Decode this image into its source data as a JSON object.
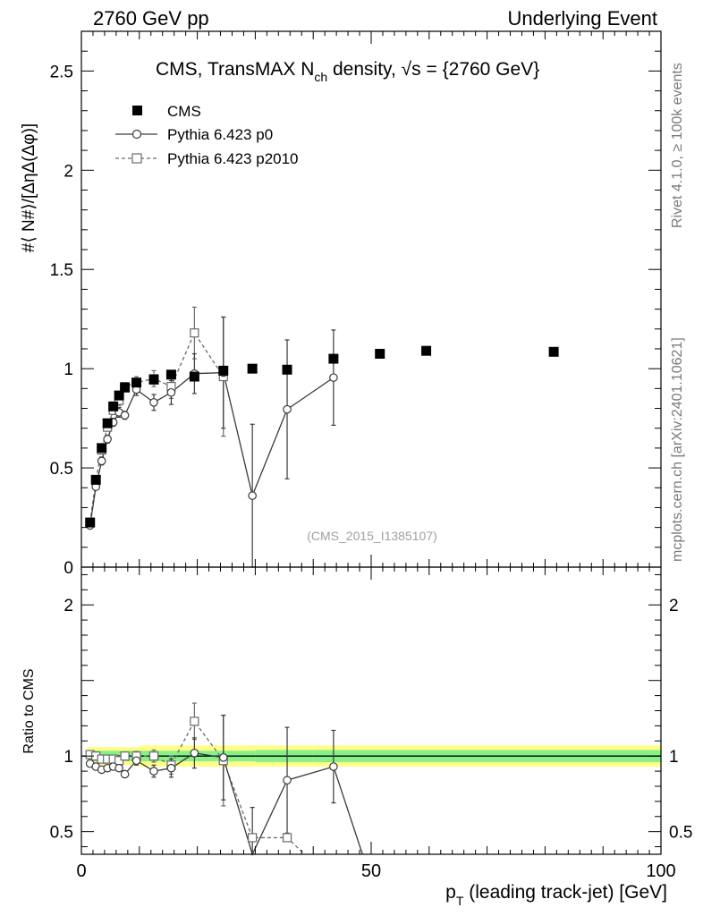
{
  "header": {
    "left": "2760 GeV pp",
    "right": "Underlying Event"
  },
  "side": {
    "rivet": "Rivet 4.1.0, ≥ 100k events",
    "mcplots": "mcplots.cern.ch [arXiv:2401.10621]"
  },
  "chart_data": {
    "type": "scatter",
    "title": {
      "prefix": "CMS, TransMAX N",
      "sub": "ch",
      "suffix": " density, ",
      "sqrt": "√s",
      "energy": " = {2760 GeV}"
    },
    "watermark": "(CMS_2015_I1385107)",
    "ylabel": "#⟨ N#⟩/[ΔηΔ(Δφ)]",
    "ratio_ylabel": "Ratio to CMS",
    "xlabel": {
      "main": "p",
      "sub": "T",
      "rest": " (leading track-jet) [GeV]"
    },
    "xlim": [
      0,
      100
    ],
    "ylim": [
      0,
      2.7
    ],
    "ratio_ylim": [
      0.35,
      2.25
    ],
    "x_ticks": [
      0,
      50,
      100
    ],
    "y_ticks": [
      {
        "v": 0.5,
        "t": "0.5"
      },
      {
        "v": 1,
        "t": "1"
      },
      {
        "v": 1.5,
        "t": "1.5"
      },
      {
        "v": 2,
        "t": "2"
      },
      {
        "v": 2.5,
        "t": "2.5"
      },
      {
        "v": 0,
        "t": "0"
      }
    ],
    "ratio_ticks": [
      {
        "v": 0.5,
        "t": "0.5"
      },
      {
        "v": 1,
        "t": "1"
      },
      {
        "v": 2,
        "t": "2"
      }
    ],
    "legend": {
      "position": "top-left",
      "cms": "CMS",
      "p0": "Pythia 6.423 p0",
      "p2010": "Pythia 6.423 p2010"
    },
    "series": [
      {
        "name": "CMS",
        "style": "filled-square",
        "x": [
          1.5,
          2.5,
          3.5,
          4.5,
          5.5,
          6.5,
          7.5,
          9.5,
          12.5,
          15.5,
          19.5,
          24.5,
          29.5,
          35.5,
          43.5,
          51.5,
          59.5,
          81.5
        ],
        "y": [
          0.225,
          0.44,
          0.6,
          0.725,
          0.81,
          0.865,
          0.905,
          0.93,
          0.945,
          0.97,
          0.96,
          0.99,
          1.0,
          0.995,
          1.05,
          1.075,
          1.09,
          1.085
        ],
        "err": [
          0,
          0,
          0,
          0,
          0,
          0,
          0,
          0,
          0,
          0,
          0,
          0,
          0,
          0,
          0,
          0,
          0,
          0
        ]
      },
      {
        "name": "Pythia 6.423 p0",
        "style": "open-circle-solid",
        "x": [
          1.5,
          2.5,
          3.5,
          4.5,
          5.5,
          6.5,
          7.5,
          9.5,
          12.5,
          15.5,
          19.5,
          24.5,
          29.5,
          35.5,
          43.5
        ],
        "y": [
          0.21,
          0.405,
          0.535,
          0.645,
          0.73,
          0.78,
          0.765,
          0.895,
          0.83,
          0.88,
          0.975,
          0.98,
          0.36,
          0.795,
          0.955
        ],
        "err": [
          0.01,
          0.01,
          0.02,
          0.02,
          0.02,
          0.025,
          0.02,
          0.03,
          0.04,
          0.06,
          0.1,
          0.28,
          0.36,
          0.35,
          0.24
        ]
      },
      {
        "name": "Pythia 6.423 p2010",
        "style": "open-square-dashed",
        "x": [
          1.5,
          2.5,
          3.5,
          4.5,
          5.5,
          6.5,
          7.5,
          9.5,
          12.5,
          15.5,
          19.5,
          24.5
        ],
        "y": [
          0.225,
          0.44,
          0.59,
          0.705,
          0.79,
          0.84,
          0.91,
          0.93,
          0.95,
          0.91,
          1.18,
          0.96
        ],
        "err": [
          0.01,
          0.01,
          0.02,
          0.02,
          0.02,
          0.025,
          0.02,
          0.03,
          0.04,
          0.06,
          0.13,
          0.3
        ]
      }
    ],
    "ratio_series": [
      {
        "name": "Pythia 6.423 p0",
        "x": [
          1.5,
          2.5,
          3.5,
          4.5,
          5.5,
          6.5,
          7.5,
          9.5,
          12.5,
          15.5,
          19.5,
          24.5,
          29.5,
          35.5,
          43.5,
          48.5
        ],
        "y": [
          0.95,
          0.93,
          0.91,
          0.92,
          0.93,
          0.92,
          0.88,
          0.97,
          0.9,
          0.92,
          1.02,
          0.99,
          0.3,
          0.84,
          0.93,
          0.3
        ],
        "err": [
          0.01,
          0.01,
          0.02,
          0.02,
          0.02,
          0.02,
          0.02,
          0.03,
          0.04,
          0.06,
          0.1,
          0.28,
          0.36,
          0.35,
          0.24,
          0
        ]
      },
      {
        "name": "Pythia 6.423 p2010",
        "x": [
          1.5,
          2.5,
          3.5,
          4.5,
          5.5,
          6.5,
          7.5,
          9.5,
          12.5,
          15.5,
          19.5,
          24.5,
          29.5,
          35.5,
          38.5
        ],
        "y": [
          1.01,
          1.0,
          0.98,
          0.98,
          0.98,
          0.97,
          1.0,
          1.0,
          1.0,
          0.94,
          1.23,
          0.97,
          0.46,
          0.46,
          0.3
        ],
        "err": [
          0.01,
          0.01,
          0.02,
          0.02,
          0.02,
          0.02,
          0.02,
          0.03,
          0.04,
          0.06,
          0.12,
          0.3,
          0,
          0,
          0
        ]
      }
    ],
    "ratio_band": {
      "x_edges": [
        1,
        10,
        20,
        30,
        40,
        50,
        100
      ],
      "inner": [
        0.035,
        0.035,
        0.035,
        0.04,
        0.04,
        0.04
      ],
      "outer": [
        0.06,
        0.07,
        0.07,
        0.07,
        0.07,
        0.07
      ]
    },
    "colors": {
      "cms": "#000000",
      "p0": "#3a3a3a",
      "p2010": "#6a6a6a",
      "band_inner": "#88f088",
      "band_outer": "#ffff88"
    }
  }
}
